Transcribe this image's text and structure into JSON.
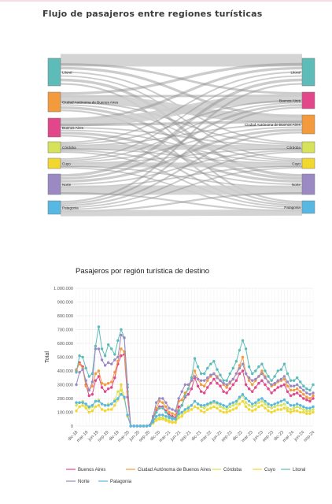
{
  "title": "Flujo de pasajeros entre regiones turísticas",
  "chart_data": [
    {
      "type": "sankey",
      "title": "",
      "nodes": [
        {
          "name": "Litoral",
          "color": "#5dbcb8"
        },
        {
          "name": "Ciudad Autónoma de Buenos Aires",
          "color": "#f39a3c"
        },
        {
          "name": "Buenos Aires",
          "color": "#e2468b"
        },
        {
          "name": "Córdoba",
          "color": "#d6e35a"
        },
        {
          "name": "Cuyo",
          "color": "#f1d72e"
        },
        {
          "name": "Norte",
          "color": "#9b89c4"
        },
        {
          "name": "Patagonia",
          "color": "#56b8e3"
        }
      ],
      "target_order": [
        "Litoral",
        "Buenos Aires",
        "Ciudad Autónoma de Buenos Aires",
        "Córdoba",
        "Cuyo",
        "Norte",
        "Patagonia"
      ]
    },
    {
      "type": "line",
      "title": "Pasajeros por región turística de destino",
      "ylabel": "Total",
      "ylim": [
        0,
        1000000
      ],
      "yticks": [
        "0",
        "100.000",
        "200.000",
        "300.000",
        "400.000",
        "500.000",
        "600.000",
        "700.000",
        "800.000",
        "900.000",
        "1.000.000"
      ],
      "xticks": [
        "dic-18",
        "mar-19",
        "jun-19",
        "sep-19",
        "dic-19",
        "mar-20",
        "jun-20",
        "sep-20",
        "dic-20",
        "mar-21",
        "jun-21",
        "sep-21",
        "dic-21",
        "mar-22",
        "jun-22",
        "sep-22",
        "dic-22",
        "mar-23",
        "jun-23",
        "sep-23",
        "dic-23",
        "mar-24",
        "jun-24",
        "sep-24"
      ],
      "grid": true,
      "legend_position": "bottom",
      "series": [
        {
          "name": "Buenos Aires",
          "color": "#e2468b",
          "values": [
            400000,
            460000,
            430000,
            300000,
            220000,
            230000,
            330000,
            360000,
            280000,
            250000,
            270000,
            280000,
            350000,
            450000,
            510000,
            520000,
            210000,
            0,
            0,
            0,
            0,
            0,
            0,
            5000,
            50000,
            120000,
            140000,
            140000,
            110000,
            80000,
            70000,
            60000,
            140000,
            150000,
            210000,
            230000,
            270000,
            350000,
            290000,
            250000,
            240000,
            280000,
            310000,
            340000,
            310000,
            290000,
            250000,
            240000,
            270000,
            300000,
            330000,
            380000,
            400000,
            300000,
            270000,
            250000,
            280000,
            310000,
            330000,
            300000,
            270000,
            240000,
            260000,
            280000,
            290000,
            300000,
            250000,
            220000,
            230000,
            240000,
            220000,
            200000,
            190000,
            180000,
            200000
          ]
        },
        {
          "name": "Ciudad Autónoma de Buenos Aires",
          "color": "#f39a3c",
          "values": [
            410000,
            450000,
            420000,
            290000,
            260000,
            290000,
            380000,
            400000,
            310000,
            300000,
            310000,
            320000,
            390000,
            470000,
            560000,
            540000,
            250000,
            0,
            0,
            0,
            0,
            0,
            0,
            5000,
            60000,
            130000,
            180000,
            170000,
            140000,
            100000,
            90000,
            80000,
            180000,
            190000,
            240000,
            270000,
            330000,
            400000,
            340000,
            300000,
            290000,
            330000,
            360000,
            380000,
            360000,
            330000,
            300000,
            280000,
            310000,
            340000,
            380000,
            440000,
            500000,
            380000,
            330000,
            300000,
            330000,
            360000,
            400000,
            360000,
            320000,
            290000,
            300000,
            320000,
            330000,
            340000,
            290000,
            260000,
            260000,
            270000,
            250000,
            230000,
            210000,
            200000,
            220000
          ]
        },
        {
          "name": "Córdoba",
          "color": "#d6e35a",
          "values": [
            150000,
            170000,
            180000,
            150000,
            130000,
            140000,
            180000,
            190000,
            160000,
            150000,
            160000,
            160000,
            190000,
            250000,
            260000,
            200000,
            80000,
            0,
            0,
            0,
            0,
            0,
            0,
            3000,
            20000,
            50000,
            60000,
            60000,
            50000,
            40000,
            30000,
            30000,
            80000,
            90000,
            120000,
            140000,
            150000,
            180000,
            160000,
            140000,
            130000,
            150000,
            160000,
            170000,
            160000,
            140000,
            130000,
            120000,
            140000,
            150000,
            160000,
            200000,
            220000,
            170000,
            150000,
            140000,
            150000,
            170000,
            180000,
            160000,
            140000,
            130000,
            140000,
            150000,
            150000,
            160000,
            130000,
            120000,
            130000,
            140000,
            130000,
            120000,
            110000,
            110000,
            120000
          ]
        },
        {
          "name": "Cuyo",
          "color": "#f1d72e",
          "values": [
            110000,
            140000,
            150000,
            130000,
            100000,
            110000,
            140000,
            150000,
            120000,
            110000,
            120000,
            120000,
            150000,
            190000,
            300000,
            200000,
            70000,
            0,
            0,
            0,
            0,
            0,
            0,
            3000,
            20000,
            40000,
            50000,
            50000,
            40000,
            30000,
            25000,
            25000,
            60000,
            70000,
            100000,
            110000,
            120000,
            140000,
            130000,
            110000,
            100000,
            120000,
            130000,
            140000,
            130000,
            110000,
            100000,
            100000,
            110000,
            120000,
            130000,
            160000,
            180000,
            140000,
            120000,
            110000,
            120000,
            140000,
            150000,
            130000,
            110000,
            100000,
            110000,
            120000,
            120000,
            130000,
            110000,
            100000,
            110000,
            110000,
            100000,
            100000,
            90000,
            90000,
            100000
          ]
        },
        {
          "name": "Litoral",
          "color": "#5dbcb8",
          "values": [
            390000,
            510000,
            500000,
            420000,
            360000,
            380000,
            580000,
            720000,
            560000,
            510000,
            590000,
            560000,
            520000,
            620000,
            700000,
            640000,
            300000,
            0,
            0,
            0,
            0,
            0,
            0,
            5000,
            50000,
            100000,
            130000,
            130000,
            100000,
            70000,
            60000,
            50000,
            110000,
            150000,
            220000,
            270000,
            350000,
            490000,
            430000,
            380000,
            380000,
            420000,
            450000,
            470000,
            410000,
            370000,
            330000,
            330000,
            380000,
            420000,
            470000,
            550000,
            620000,
            560000,
            430000,
            380000,
            400000,
            430000,
            450000,
            400000,
            360000,
            330000,
            360000,
            400000,
            410000,
            450000,
            380000,
            330000,
            330000,
            350000,
            320000,
            290000,
            270000,
            260000,
            300000
          ]
        },
        {
          "name": "Norte",
          "color": "#9b89c4",
          "values": [
            300000,
            390000,
            410000,
            330000,
            260000,
            320000,
            560000,
            560000,
            480000,
            440000,
            460000,
            450000,
            480000,
            500000,
            660000,
            640000,
            280000,
            0,
            0,
            0,
            0,
            0,
            0,
            8000,
            70000,
            170000,
            200000,
            200000,
            170000,
            130000,
            120000,
            110000,
            200000,
            250000,
            300000,
            300000,
            330000,
            360000,
            340000,
            330000,
            330000,
            350000,
            370000,
            380000,
            350000,
            330000,
            310000,
            300000,
            320000,
            340000,
            380000,
            420000,
            450000,
            380000,
            350000,
            330000,
            340000,
            360000,
            380000,
            350000,
            320000,
            300000,
            310000,
            330000,
            340000,
            360000,
            320000,
            290000,
            290000,
            300000,
            280000,
            260000,
            240000,
            230000,
            240000
          ]
        },
        {
          "name": "Patagonia",
          "color": "#56b8e3",
          "values": [
            170000,
            170000,
            170000,
            160000,
            140000,
            150000,
            180000,
            180000,
            160000,
            150000,
            150000,
            160000,
            180000,
            200000,
            230000,
            210000,
            80000,
            0,
            0,
            0,
            0,
            0,
            0,
            3000,
            30000,
            70000,
            80000,
            80000,
            70000,
            60000,
            50000,
            50000,
            90000,
            100000,
            120000,
            130000,
            150000,
            180000,
            160000,
            150000,
            150000,
            160000,
            170000,
            180000,
            170000,
            160000,
            150000,
            140000,
            160000,
            170000,
            180000,
            210000,
            230000,
            200000,
            180000,
            160000,
            170000,
            190000,
            200000,
            180000,
            160000,
            150000,
            160000,
            170000,
            180000,
            190000,
            170000,
            150000,
            150000,
            160000,
            150000,
            140000,
            130000,
            130000,
            140000
          ]
        }
      ]
    }
  ]
}
